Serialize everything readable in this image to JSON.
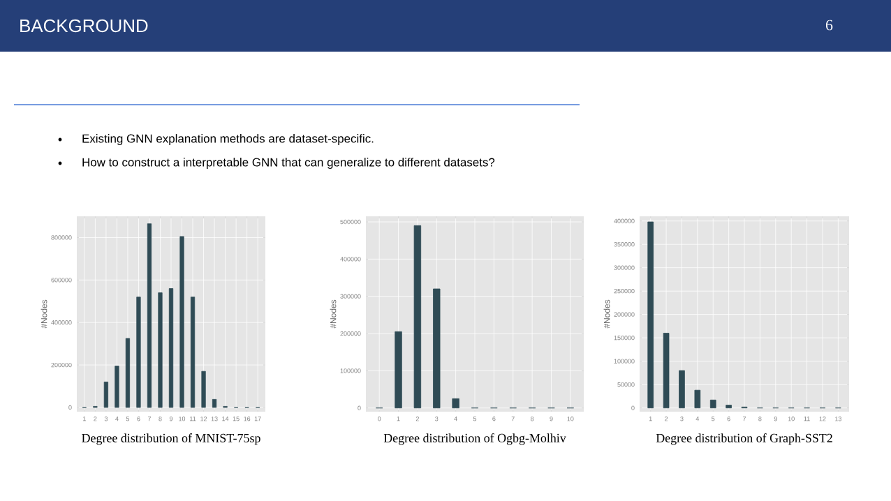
{
  "chart_data": [
    {
      "type": "other",
      "title": "BACKGROUND",
      "annotations": [
        "6",
        "Existing GNN explanation methods are dataset-specific.",
        "How to construct a interpretable GNN that can generalize to different datasets?"
      ]
    },
    {
      "type": "bar",
      "xlabel": "Degree distribution of MNIST-75sp",
      "ylabel": "#Nodes",
      "color": "#2f4b55",
      "grid": true,
      "categories": [
        "1",
        "2",
        "3",
        "4",
        "5",
        "6",
        "7",
        "8",
        "9",
        "10",
        "11",
        "12",
        "13",
        "14",
        "15",
        "16",
        "17"
      ],
      "values": [
        0,
        5000,
        120000,
        195000,
        325000,
        520000,
        865000,
        540000,
        560000,
        805000,
        520000,
        170000,
        38000,
        5000,
        0,
        0,
        0
      ],
      "ylim": [
        -20000,
        900000
      ],
      "yticks": [
        0,
        200000,
        400000,
        600000,
        800000
      ]
    },
    {
      "type": "bar",
      "xlabel": "Degree distribution of Ogbg-Molhiv",
      "ylabel": "#Nodes",
      "color": "#2f4b55",
      "grid": true,
      "categories": [
        "0",
        "1",
        "2",
        "3",
        "4",
        "5",
        "6",
        "7",
        "8",
        "9",
        "10"
      ],
      "values": [
        0,
        205000,
        490000,
        320000,
        25000,
        0,
        0,
        0,
        0,
        0,
        0
      ],
      "ylim": [
        -10000,
        515000
      ],
      "yticks": [
        0,
        100000,
        200000,
        300000,
        400000,
        500000
      ]
    },
    {
      "type": "bar",
      "xlabel": "Degree distribution of Graph-SST2",
      "ylabel": "#Nodes",
      "color": "#2f4b55",
      "grid": true,
      "categories": [
        "1",
        "2",
        "3",
        "4",
        "5",
        "6",
        "7",
        "8",
        "9",
        "10",
        "11",
        "12",
        "13"
      ],
      "values": [
        398000,
        160000,
        80000,
        38000,
        17000,
        6000,
        2000,
        0,
        0,
        0,
        0,
        0,
        0
      ],
      "ylim": [
        -8000,
        410000
      ],
      "yticks": [
        0,
        50000,
        100000,
        150000,
        200000,
        250000,
        300000,
        350000,
        400000
      ]
    }
  ]
}
